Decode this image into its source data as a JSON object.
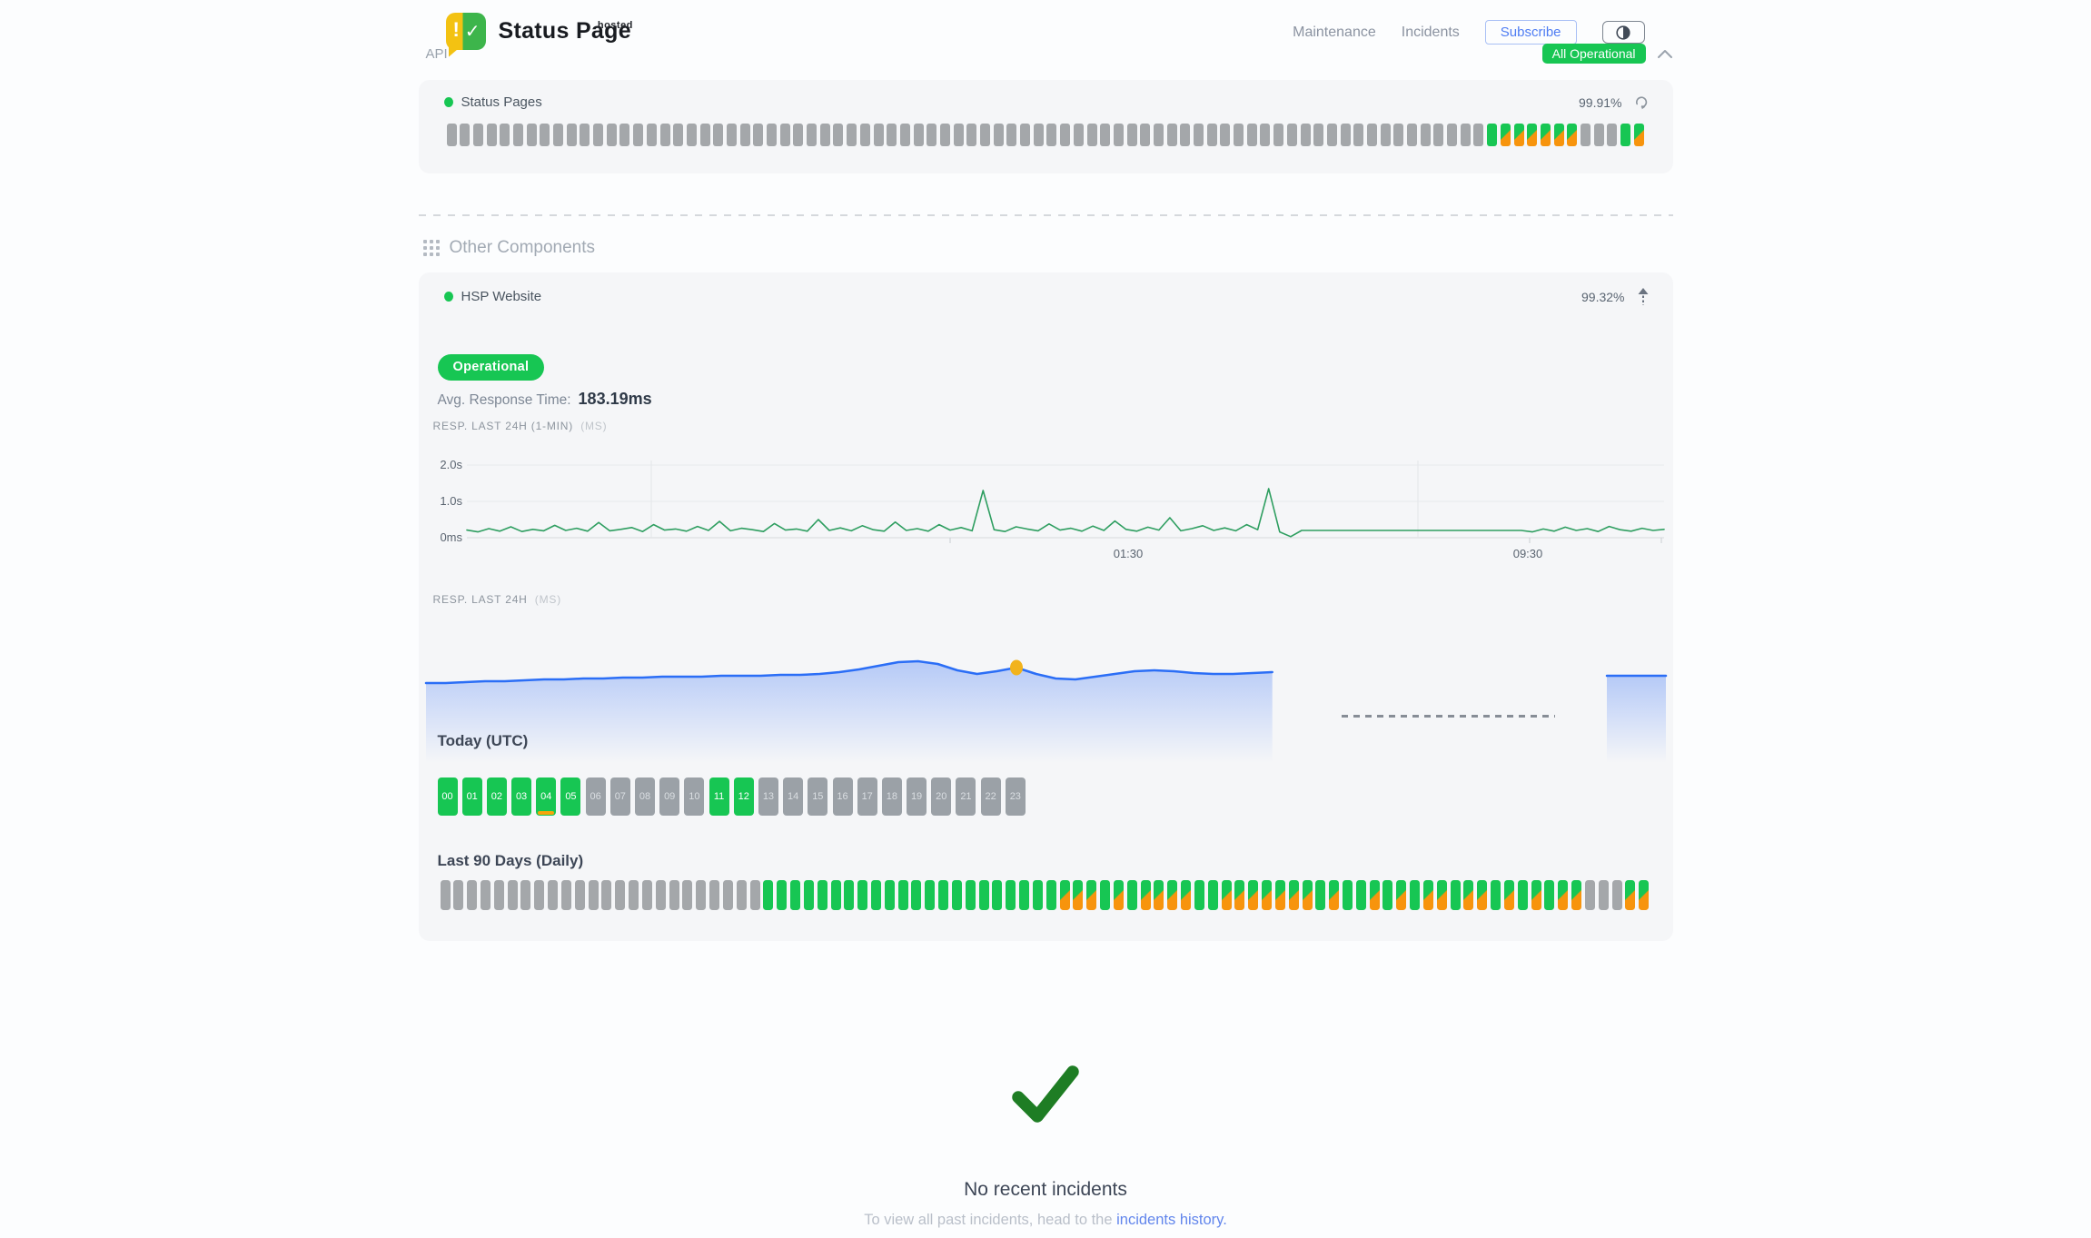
{
  "header": {
    "brand": "Status Page",
    "brand_sup": "hosted",
    "logo_exclaim": "!",
    "logo_check": "✓",
    "nav": {
      "maintenance": "Maintenance",
      "incidents": "Incidents"
    },
    "subscribe": "Subscribe",
    "overall_status": "All Operational"
  },
  "api": {
    "title": "API",
    "component_name": "Status Pages",
    "uptime_percent": "99.91%",
    "bars_rle": [
      [
        "gray",
        78
      ],
      [
        "green",
        1
      ],
      [
        "mixed",
        6
      ],
      [
        "gray",
        3
      ],
      [
        "green",
        1
      ],
      [
        "mixed",
        1
      ]
    ]
  },
  "other": {
    "title": "Other Components",
    "component_name": "HSP Website",
    "uptime_percent": "99.32%",
    "status_pill": "Operational",
    "avg_label": "Avg. Response Time:",
    "avg_value": "183.19ms",
    "chart1": {
      "type": "line",
      "label": "RESP. LAST 24H (1-MIN)",
      "unit": "(MS)",
      "y_ticks": [
        "2.0s",
        "1.0s",
        "0ms"
      ],
      "x_ticks": [
        "01:30",
        "09:30"
      ],
      "ylim_ms": [
        0,
        2000
      ],
      "values_ms": [
        210,
        160,
        250,
        180,
        300,
        170,
        230,
        190,
        340,
        200,
        260,
        180,
        420,
        190,
        230,
        280,
        170,
        360,
        210,
        240,
        180,
        310,
        200,
        450,
        190,
        260,
        220,
        170,
        390,
        210,
        240,
        180,
        500,
        200,
        270,
        190,
        330,
        220,
        180,
        430,
        200,
        250,
        180,
        360,
        210,
        280,
        190,
        1300,
        220,
        170,
        300,
        240,
        190,
        380,
        210,
        260,
        180,
        320,
        200,
        460,
        230,
        180,
        290,
        210,
        550,
        190,
        250,
        330,
        200,
        270,
        190,
        360,
        220,
        1350,
        160,
        30,
        200,
        200,
        200,
        200,
        200,
        200,
        200,
        200,
        200,
        200,
        200,
        200,
        200,
        200,
        200,
        200,
        200,
        200,
        200,
        200,
        200,
        160,
        240,
        180,
        290,
        200,
        250,
        170,
        310,
        220,
        180,
        260,
        200,
        230
      ]
    },
    "chart2": {
      "type": "area",
      "label": "RESP. LAST 24H",
      "unit": "(MS)",
      "dot_index": 30,
      "values": [
        78,
        78,
        79,
        80,
        80,
        81,
        82,
        82,
        83,
        83,
        84,
        84,
        85,
        85,
        85,
        86,
        86,
        86,
        87,
        87,
        88,
        90,
        93,
        97,
        101,
        102,
        99,
        92,
        88,
        91,
        95,
        88,
        83,
        82,
        85,
        88,
        91,
        92,
        91,
        89,
        88,
        88,
        89,
        90,
        null,
        null,
        null,
        null,
        null,
        null,
        null,
        null,
        null,
        null,
        null,
        null,
        null,
        null,
        null,
        null,
        86,
        86,
        86,
        86
      ]
    },
    "today_title": "Today (UTC)",
    "hours": [
      {
        "label": "00",
        "status": "green"
      },
      {
        "label": "01",
        "status": "green"
      },
      {
        "label": "02",
        "status": "green"
      },
      {
        "label": "03",
        "status": "green"
      },
      {
        "label": "04",
        "status": "green",
        "marker": true
      },
      {
        "label": "05",
        "status": "green"
      },
      {
        "label": "06",
        "status": "gray"
      },
      {
        "label": "07",
        "status": "gray"
      },
      {
        "label": "08",
        "status": "gray"
      },
      {
        "label": "09",
        "status": "gray"
      },
      {
        "label": "10",
        "status": "gray"
      },
      {
        "label": "11",
        "status": "green"
      },
      {
        "label": "12",
        "status": "green"
      },
      {
        "label": "13",
        "status": "gray"
      },
      {
        "label": "14",
        "status": "gray"
      },
      {
        "label": "15",
        "status": "gray"
      },
      {
        "label": "16",
        "status": "gray"
      },
      {
        "label": "17",
        "status": "gray"
      },
      {
        "label": "18",
        "status": "gray"
      },
      {
        "label": "19",
        "status": "gray"
      },
      {
        "label": "20",
        "status": "gray"
      },
      {
        "label": "21",
        "status": "gray"
      },
      {
        "label": "22",
        "status": "gray"
      },
      {
        "label": "23",
        "status": "gray"
      }
    ],
    "last90_title": "Last 90 Days (Daily)",
    "day_bars_rle": [
      [
        "gray",
        24
      ],
      [
        "green",
        22
      ],
      [
        "mixed",
        3
      ],
      [
        "green",
        1
      ],
      [
        "mixed",
        1
      ],
      [
        "green",
        1
      ],
      [
        "mixed",
        4
      ],
      [
        "green",
        2
      ],
      [
        "mixed",
        7
      ],
      [
        "green",
        1
      ],
      [
        "mixed",
        1
      ],
      [
        "green",
        2
      ],
      [
        "mixed",
        1
      ],
      [
        "green",
        1
      ],
      [
        "mixed",
        1
      ],
      [
        "green",
        1
      ],
      [
        "mixed",
        2
      ],
      [
        "green",
        1
      ],
      [
        "mixed",
        2
      ],
      [
        "green",
        1
      ],
      [
        "mixed",
        1
      ],
      [
        "green",
        1
      ],
      [
        "mixed",
        1
      ],
      [
        "green",
        1
      ],
      [
        "mixed",
        2
      ],
      [
        "gray",
        3
      ],
      [
        "mixed",
        2
      ]
    ]
  },
  "footer": {
    "title": "No recent incidents",
    "subtitle_prefix": "To view all past incidents, head to the ",
    "link_text": "incidents history."
  },
  "colors": {
    "green": "#17c653",
    "orange": "#f7940d",
    "gray_bar": "#a4a7aa",
    "blue_line": "#2b6ef6",
    "chart_green": "#2e9e60",
    "amber_dot": "#f2b31c"
  }
}
